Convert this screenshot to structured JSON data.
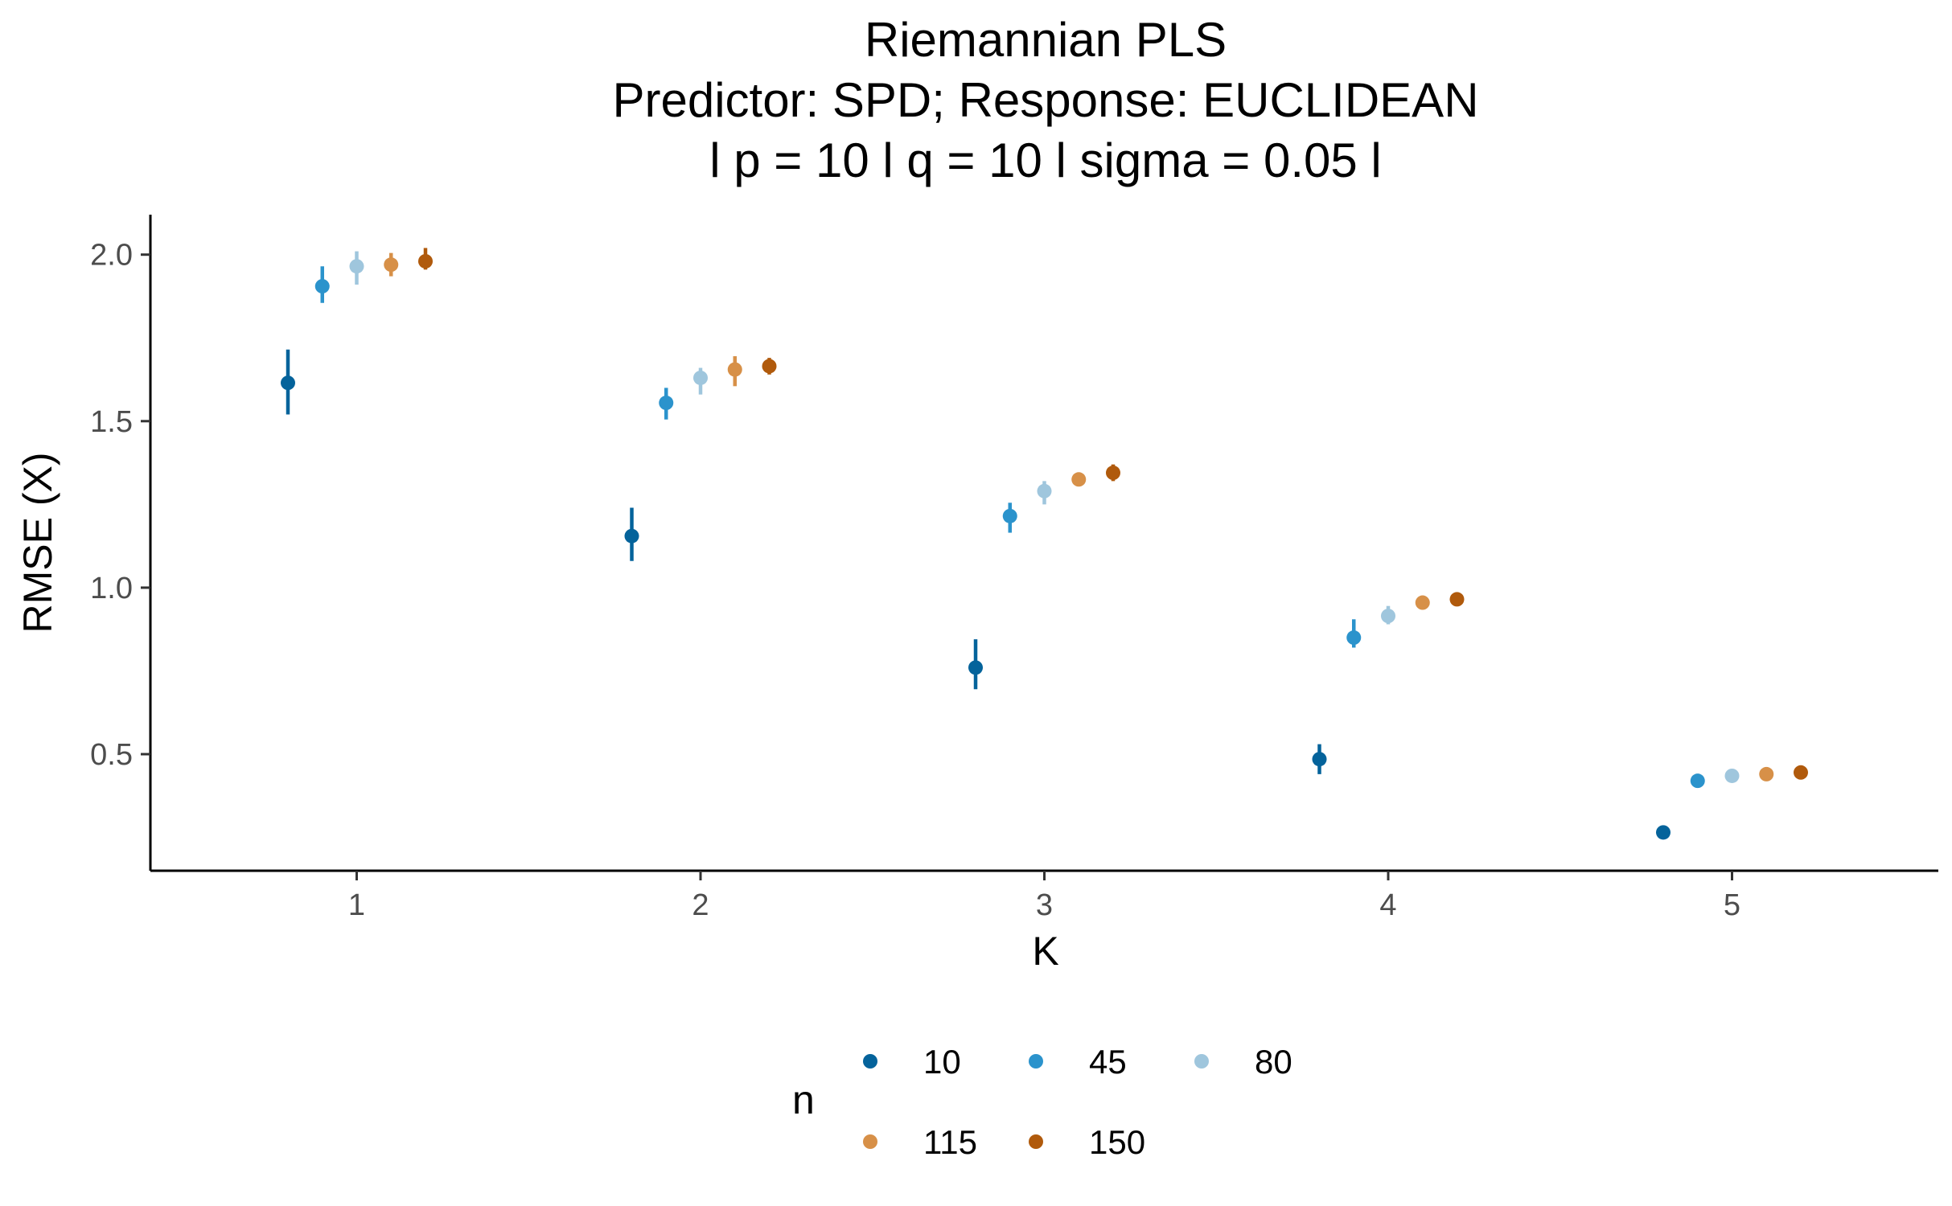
{
  "chart_data": {
    "type": "scatter",
    "title": "Riemannian PLS",
    "subtitle_lines": [
      "Predictor: SPD; Response: EUCLIDEAN",
      "l p = 10 l q = 10 l sigma = 0.05 l"
    ],
    "xlabel": "K",
    "ylabel": "RMSE (X)",
    "x_ticks": [
      "1",
      "2",
      "3",
      "4",
      "5"
    ],
    "y_ticks": [
      "0.5",
      "1.0",
      "1.5",
      "2.0"
    ],
    "xlim": [
      0.4,
      5.6
    ],
    "ylim": [
      0.15,
      2.12
    ],
    "grid": false,
    "legend": {
      "title": "n",
      "position": "bottom"
    },
    "dodge_offsets": [
      -0.2,
      -0.1,
      0.0,
      0.1,
      0.2
    ],
    "series": [
      {
        "name": "10",
        "color": "#04639B",
        "values": [
          1.615,
          1.155,
          0.76,
          0.485,
          0.265
        ],
        "lower": [
          1.52,
          1.08,
          0.695,
          0.44,
          0.255
        ],
        "upper": [
          1.715,
          1.24,
          0.845,
          0.53,
          0.275
        ]
      },
      {
        "name": "45",
        "color": "#2B93CC",
        "values": [
          1.905,
          1.555,
          1.215,
          0.85,
          0.42
        ],
        "lower": [
          1.855,
          1.505,
          1.165,
          0.82,
          0.41
        ],
        "upper": [
          1.965,
          1.6,
          1.255,
          0.905,
          0.43
        ]
      },
      {
        "name": "80",
        "color": "#9FC6DD",
        "values": [
          1.965,
          1.63,
          1.29,
          0.915,
          0.435
        ],
        "lower": [
          1.91,
          1.58,
          1.25,
          0.89,
          0.425
        ],
        "upper": [
          2.01,
          1.66,
          1.32,
          0.945,
          0.445
        ]
      },
      {
        "name": "115",
        "color": "#D79048",
        "values": [
          1.97,
          1.655,
          1.325,
          0.955,
          0.44
        ],
        "lower": [
          1.935,
          1.605,
          1.305,
          0.935,
          0.43
        ],
        "upper": [
          2.005,
          1.695,
          1.345,
          0.975,
          0.45
        ]
      },
      {
        "name": "150",
        "color": "#B05A0C",
        "values": [
          1.98,
          1.665,
          1.345,
          0.965,
          0.445
        ],
        "lower": [
          1.955,
          1.64,
          1.32,
          0.945,
          0.435
        ],
        "upper": [
          2.02,
          1.69,
          1.37,
          0.985,
          0.455
        ]
      }
    ]
  }
}
